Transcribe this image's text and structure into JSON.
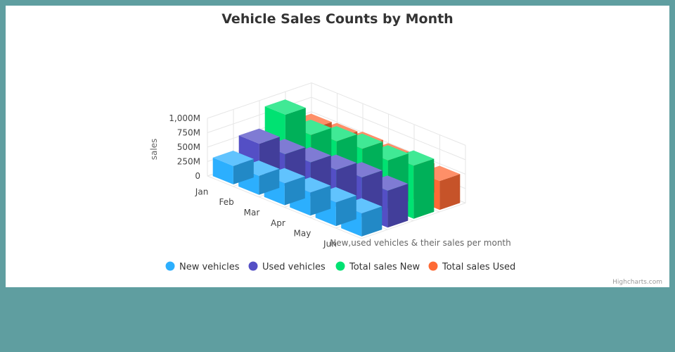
{
  "chart_data": {
    "type": "bar",
    "title": "Vehicle Sales Counts by Month",
    "ylabel": "sales",
    "xlabel": "New,used vehicles & their sales per month",
    "categories": [
      "Jan",
      "Feb",
      "Mar",
      "Apr",
      "May",
      "Jun"
    ],
    "ylim": [
      0,
      1000
    ],
    "yticks": [
      0,
      250,
      500,
      750,
      1000
    ],
    "ytick_labels": [
      "0",
      "250M",
      "500M",
      "750M",
      "1,000M"
    ],
    "series": [
      {
        "name": "New vehicles",
        "color": "#2caffe",
        "values": [
          320,
          330,
          380,
          400,
          410,
          400
        ]
      },
      {
        "name": "Used vehicles",
        "color": "#544fc5",
        "values": [
          550,
          550,
          590,
          640,
          690,
          640
        ]
      },
      {
        "name": "Total sales New",
        "color": "#00e272",
        "values": [
          900,
          730,
          800,
          850,
          830,
          920
        ]
      },
      {
        "name": "Total sales Used",
        "color": "#fe6a35",
        "values": [
          500,
          520,
          550,
          530,
          510,
          500
        ]
      }
    ],
    "legend_position": "bottom-center",
    "grid": true
  },
  "credits": "Highcharts.com"
}
